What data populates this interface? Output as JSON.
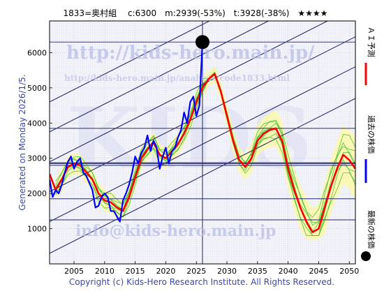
{
  "header": {
    "title": "1833=奥村組　 c:6300　m:2939(-53%)　t:3928(-38%)　★★★★"
  },
  "side_note": "Generated on Monday 2026/1/5.",
  "footer": "Copyright (c) Kids-Hero Research Institute. All Rights Reserved.",
  "watermarks": {
    "url_big": "http://kids-hero.main.jp/",
    "url_small": "http://kids-hero.main.jp/analysis/code1833.html",
    "email": "info@kids-hero.main.jp",
    "kids": "KIDS"
  },
  "legend": [
    {
      "label": "ＡＩ予測",
      "color": "#ff0000",
      "marker": "line"
    },
    {
      "label": "過去の株価",
      "color": "#0000ff",
      "marker": "line"
    },
    {
      "label": "最新の株価",
      "color": "#000000",
      "marker": "dot"
    }
  ],
  "chart_data": {
    "type": "line",
    "xlim": [
      2001,
      2051
    ],
    "ylim": [
      0,
      6900
    ],
    "xticks": [
      2005,
      2010,
      2015,
      2020,
      2025,
      2030,
      2035,
      2040,
      2045,
      2050
    ],
    "yticks": [
      1000,
      2000,
      3000,
      4000,
      5000,
      6000
    ],
    "grid": true,
    "current": {
      "x": 2026.0,
      "y": 6300
    },
    "horizontal_levels": [
      6300,
      3850,
      2860,
      2800,
      1850,
      1250
    ],
    "vertical_marker_x": 2026.0,
    "trend_lines": [
      {
        "x1": 2001,
        "y1": 1200,
        "x2": 2051,
        "y2": 5600
      },
      {
        "x1": 2001,
        "y1": 2900,
        "x2": 2051,
        "y2": 7300
      },
      {
        "x1": 2001,
        "y1": 4600,
        "x2": 2051,
        "y2": 9000
      },
      {
        "x1": 2001,
        "y1": 300,
        "x2": 2051,
        "y2": 4700
      },
      {
        "x1": 2001,
        "y1": 2050,
        "x2": 2051,
        "y2": 6450
      },
      {
        "x1": 2001,
        "y1": 3750,
        "x2": 2051,
        "y2": 8150
      }
    ],
    "series": [
      {
        "color": "#0000ff",
        "x": [
          2001.0,
          2001.5,
          2002.0,
          2002.5,
          2003.0,
          2003.5,
          2004.0,
          2004.5,
          2005.0,
          2005.5,
          2006.0,
          2006.5,
          2007.0,
          2007.5,
          2008.0,
          2008.5,
          2009.0,
          2009.5,
          2010.0,
          2010.5,
          2011.0,
          2011.5,
          2012.0,
          2012.5,
          2013.0,
          2013.5,
          2014.0,
          2014.5,
          2015.0,
          2015.5,
          2016.0,
          2016.5,
          2017.0,
          2017.5,
          2018.0,
          2018.5,
          2019.0,
          2019.5,
          2020.0,
          2020.5,
          2021.0,
          2021.5,
          2022.0,
          2022.5,
          2023.0,
          2023.5,
          2024.0,
          2024.5,
          2025.0,
          2025.5,
          2026.0
        ],
        "values": [
          2400,
          1900,
          2100,
          2000,
          2250,
          2600,
          2900,
          3050,
          2700,
          2900,
          3000,
          2600,
          2500,
          2300,
          2100,
          1600,
          1650,
          1900,
          2000,
          1900,
          1500,
          1500,
          1350,
          1200,
          1800,
          2000,
          2250,
          2600,
          3050,
          2850,
          3150,
          3300,
          3650,
          3200,
          3500,
          3300,
          2700,
          3050,
          3300,
          2850,
          3200,
          3300,
          3600,
          3800,
          4300,
          4000,
          4600,
          4750,
          4200,
          4500,
          6300
        ]
      },
      {
        "color": "#ff0000",
        "x": [
          2001.0,
          2002.0,
          2003.0,
          2004.0,
          2005.0,
          2006.0,
          2007.0,
          2008.0,
          2009.0,
          2010.0,
          2011.0,
          2012.0,
          2013.0,
          2014.0,
          2015.0,
          2016.0,
          2017.0,
          2018.0,
          2019.0,
          2020.0,
          2021.0,
          2022.0,
          2023.0,
          2024.0,
          2025.0,
          2026.0,
          2027.0,
          2028.0,
          2029.0,
          2030.0,
          2031.0,
          2032.0,
          2033.0,
          2034.0,
          2035.0,
          2036.0,
          2037.0,
          2038.0,
          2039.0,
          2040.0,
          2041.0,
          2042.0,
          2043.0,
          2044.0,
          2045.0,
          2046.0,
          2047.0,
          2048.0,
          2049.0,
          2050.0,
          2051.0
        ],
        "values": [
          2550,
          2100,
          2400,
          2750,
          2850,
          2800,
          2600,
          2400,
          2000,
          1800,
          1750,
          1600,
          1500,
          1900,
          2450,
          3000,
          3250,
          3450,
          3100,
          3000,
          3200,
          3400,
          3700,
          4100,
          4600,
          5000,
          5250,
          5400,
          4900,
          4200,
          3500,
          2950,
          2750,
          3000,
          3500,
          3700,
          3800,
          3850,
          3500,
          2700,
          2100,
          1600,
          1200,
          900,
          1000,
          1600,
          2200,
          2700,
          3100,
          2950,
          2700
        ]
      }
    ]
  }
}
